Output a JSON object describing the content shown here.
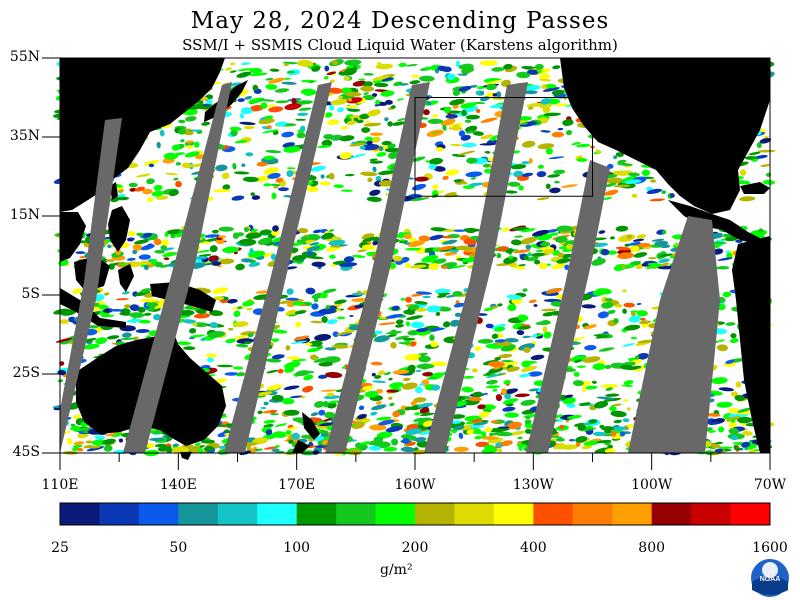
{
  "title": "May 28, 2024  Descending Passes",
  "subtitle": "SSM/I + SSMIS Cloud Liquid Water (Karstens algorithm)",
  "map": {
    "lat_labels": [
      "55N",
      "35N",
      "15N",
      "5S",
      "25S",
      "45S"
    ],
    "lon_labels": [
      "110E",
      "140E",
      "170E",
      "160W",
      "130W",
      "100W",
      "70W"
    ],
    "lat_range": [
      -45,
      55
    ],
    "lon_range_east": [
      110,
      290
    ],
    "highlight_box": {
      "lon_east": [
        200,
        245
      ],
      "lat": [
        20,
        45
      ]
    },
    "colors": {
      "land": "#000000",
      "no_data": "#686868",
      "ocean_clear": "#ffffff",
      "box": "#000000"
    }
  },
  "colorbar": {
    "colors": [
      "#0a1a78",
      "#0a37b4",
      "#0a5aeb",
      "#14969b",
      "#14c3c3",
      "#1effff",
      "#009600",
      "#14c81e",
      "#00ff00",
      "#b4b400",
      "#dcdc00",
      "#ffff00",
      "#ff5000",
      "#ff7d00",
      "#ffa000",
      "#960000",
      "#c80000",
      "#ff0000"
    ],
    "tick_labels": [
      "25",
      "50",
      "100",
      "200",
      "400",
      "800",
      "1600"
    ],
    "units": "g/m²"
  },
  "logo": {
    "text": "NOAA"
  }
}
